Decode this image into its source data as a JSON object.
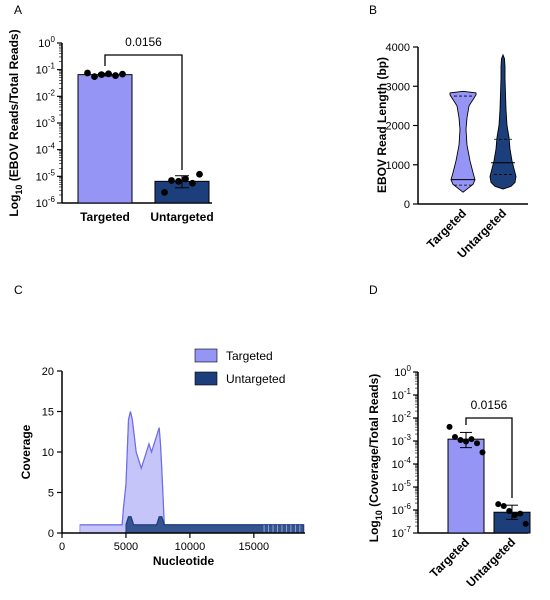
{
  "colors": {
    "targeted": "#9595f5",
    "untargeted": "#1c3f7c",
    "dot": "#000000"
  },
  "chart_data": [
    {
      "panel": "A",
      "type": "bar",
      "categories": [
        "Targeted",
        "Untargeted"
      ],
      "values": [
        0.065,
        6.5e-06
      ],
      "points": [
        [
          0.075,
          0.055,
          0.065,
          0.07,
          0.06,
          0.068
        ],
        [
          2.5e-06,
          7e-06,
          6.5e-06,
          8e-06,
          5.5e-06,
          1.2e-05
        ]
      ],
      "yscale": "log",
      "ylim": [
        1e-06,
        1
      ],
      "yticks": [
        "10^-6",
        "10^-5",
        "10^-4",
        "10^-3",
        "10^-2",
        "10^-1",
        "10^0"
      ],
      "ylabel": "Log10 (EBOV Reads/Total Reads)",
      "annotation": "0.0156"
    },
    {
      "panel": "B",
      "type": "violin",
      "categories": [
        "Targeted",
        "Untargeted"
      ],
      "ylabel": "EBOV Read Length (bp)",
      "ylim": [
        0,
        4000
      ],
      "yticks": [
        0,
        1000,
        2000,
        3000,
        4000
      ],
      "median": [
        620,
        1050
      ],
      "quartiles": [
        [
          480,
          2750
        ],
        [
          750,
          1650
        ]
      ],
      "range": [
        [
          300,
          2870
        ],
        [
          380,
          3800
        ]
      ]
    },
    {
      "panel": "C",
      "type": "area",
      "xlabel": "Nucleotide",
      "ylabel": "Coverage",
      "xlim": [
        0,
        19000
      ],
      "xticks": [
        0,
        5000,
        10000,
        15000
      ],
      "ylim": [
        0,
        20
      ],
      "yticks": [
        0,
        5,
        10,
        15,
        20
      ],
      "legend": [
        "Targeted",
        "Untargeted"
      ],
      "series": [
        {
          "name": "Targeted",
          "x": [
            1400,
            4700,
            4800,
            5000,
            5100,
            5200,
            5350,
            5500,
            5650,
            5800,
            6000,
            6200,
            6400,
            6600,
            6800,
            7000,
            7200,
            7400,
            7600,
            7700,
            7800,
            8000,
            18900
          ],
          "y": [
            1,
            1,
            3,
            6,
            10,
            14,
            15,
            14,
            12,
            10,
            9,
            8,
            9,
            10,
            11,
            10,
            11,
            12,
            13,
            11,
            8,
            1,
            1
          ]
        },
        {
          "name": "Untargeted",
          "x": [
            5000,
            5200,
            5400,
            5600,
            5800,
            6000,
            7400,
            7600,
            7800,
            8000,
            15600,
            18900
          ],
          "y": [
            1,
            2,
            2,
            1,
            1,
            1,
            1,
            2,
            2,
            1,
            1,
            1
          ]
        }
      ]
    },
    {
      "panel": "D",
      "type": "bar",
      "categories": [
        "Targeted",
        "Untargeted"
      ],
      "values": [
        0.0012,
        8e-07
      ],
      "points": [
        [
          0.0041,
          0.0015,
          0.0011,
          0.00095,
          0.0012,
          0.0008,
          0.00032
        ],
        [
          1.8e-06,
          1.5e-06,
          9e-07,
          6e-07,
          7e-07,
          2.5e-07
        ]
      ],
      "yscale": "log",
      "ylim": [
        1e-07,
        1
      ],
      "yticks": [
        "10^-7",
        "10^-6",
        "10^-5",
        "10^-4",
        "10^-3",
        "10^-2",
        "10^-1",
        "10^0"
      ],
      "ylabel": "Log10 (Coverage/Total Reads)",
      "annotation": "0.0156"
    }
  ]
}
